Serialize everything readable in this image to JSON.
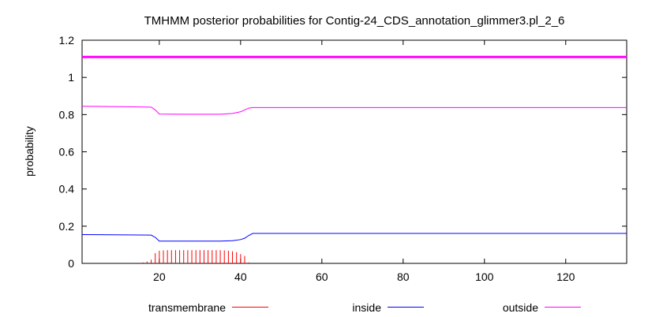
{
  "chart_data": {
    "type": "line",
    "title": "TMHMM posterior probabilities for Contig-24_CDS_annotation_glimmer3.pl_2_6",
    "xlabel": "",
    "ylabel": "probability",
    "xlim": [
      1,
      135
    ],
    "ylim": [
      0,
      1.2
    ],
    "xticks": [
      20,
      40,
      60,
      80,
      100,
      120
    ],
    "yticks": [
      0,
      0.2,
      0.4,
      0.6,
      0.8,
      1,
      1.2
    ],
    "ytick_labels": [
      "0",
      "0.2",
      "0.4",
      "0.6",
      "0.8",
      "1",
      "1.2"
    ],
    "grid": false,
    "legend_position": "bottom",
    "series": [
      {
        "name": "transmembrane",
        "style": "impulses",
        "color": "#ff0000",
        "points": [
          [
            16,
            0.005
          ],
          [
            17,
            0.01
          ],
          [
            18,
            0.02
          ],
          [
            19,
            0.055
          ],
          [
            20,
            0.068
          ],
          [
            21,
            0.07
          ],
          [
            22,
            0.071
          ],
          [
            23,
            0.071
          ],
          [
            24,
            0.071
          ],
          [
            25,
            0.071
          ],
          [
            26,
            0.071
          ],
          [
            27,
            0.071
          ],
          [
            28,
            0.071
          ],
          [
            29,
            0.071
          ],
          [
            30,
            0.071
          ],
          [
            31,
            0.071
          ],
          [
            32,
            0.071
          ],
          [
            33,
            0.071
          ],
          [
            34,
            0.071
          ],
          [
            35,
            0.071
          ],
          [
            36,
            0.07
          ],
          [
            37,
            0.068
          ],
          [
            38,
            0.065
          ],
          [
            39,
            0.06
          ],
          [
            40,
            0.05
          ],
          [
            41,
            0.04
          ],
          [
            42,
            0.005
          ]
        ]
      },
      {
        "name": "inside",
        "style": "line",
        "color": "#0000ff",
        "points": [
          [
            1,
            0.155
          ],
          [
            12,
            0.153
          ],
          [
            18,
            0.152
          ],
          [
            19,
            0.14
          ],
          [
            20,
            0.12
          ],
          [
            25,
            0.12
          ],
          [
            30,
            0.12
          ],
          [
            35,
            0.12
          ],
          [
            38,
            0.122
          ],
          [
            40,
            0.128
          ],
          [
            41,
            0.135
          ],
          [
            42,
            0.15
          ],
          [
            43,
            0.161
          ],
          [
            60,
            0.161
          ],
          [
            80,
            0.161
          ],
          [
            100,
            0.161
          ],
          [
            120,
            0.161
          ],
          [
            135,
            0.161
          ]
        ]
      },
      {
        "name": "outside",
        "style": "line",
        "color": "#ff00ff",
        "points": [
          [
            1,
            0.845
          ],
          [
            12,
            0.842
          ],
          [
            18,
            0.84
          ],
          [
            19,
            0.825
          ],
          [
            20,
            0.803
          ],
          [
            25,
            0.802
          ],
          [
            30,
            0.802
          ],
          [
            35,
            0.802
          ],
          [
            38,
            0.806
          ],
          [
            40,
            0.815
          ],
          [
            41,
            0.825
          ],
          [
            42,
            0.835
          ],
          [
            43,
            0.838
          ],
          [
            60,
            0.838
          ],
          [
            80,
            0.838
          ],
          [
            100,
            0.838
          ],
          [
            120,
            0.838
          ],
          [
            135,
            0.838
          ]
        ]
      },
      {
        "name": "",
        "style": "line",
        "color": "#ff00ff",
        "points": [
          [
            1,
            1.11
          ],
          [
            135,
            1.11
          ]
        ]
      }
    ]
  }
}
